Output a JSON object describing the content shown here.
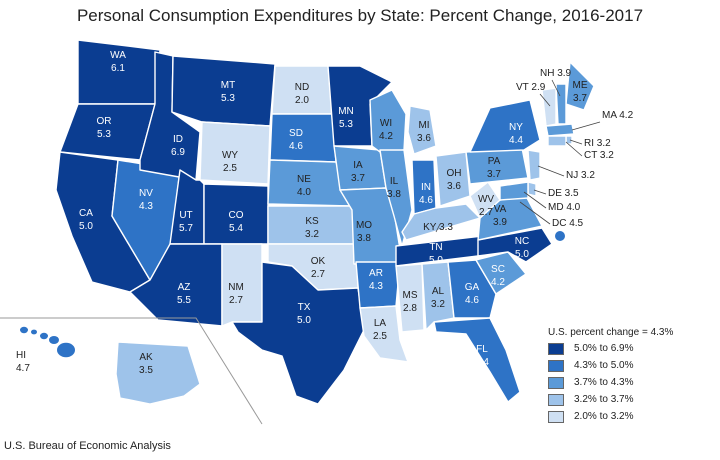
{
  "title": "Personal Consumption Expenditures by State: Percent Change, 2016-2017",
  "source": "U.S. Bureau of Economic Analysis",
  "legend": {
    "title": "U.S. percent change = 4.3%",
    "items": [
      {
        "label": "5.0% to 6.9%",
        "color": "#0b3d91"
      },
      {
        "label": "4.3% to 5.0%",
        "color": "#2e73c6"
      },
      {
        "label": "3.7% to 4.3%",
        "color": "#5b9ad8"
      },
      {
        "label": "3.2% to 3.7%",
        "color": "#9ec3ea"
      },
      {
        "label": "2.0% to 3.2%",
        "color": "#cfe0f3"
      }
    ]
  },
  "states": {
    "WA": "6.1",
    "OR": "5.3",
    "CA": "5.0",
    "NV": "4.3",
    "ID": "6.9",
    "MT": "5.3",
    "WY": "2.5",
    "UT": "5.7",
    "CO": "5.4",
    "AZ": "5.5",
    "NM": "2.7",
    "ND": "2.0",
    "SD": "4.6",
    "NE": "4.0",
    "KS": "3.2",
    "OK": "2.7",
    "TX": "5.0",
    "MN": "5.3",
    "IA": "3.7",
    "MO": "3.8",
    "AR": "4.3",
    "LA": "2.5",
    "WI": "4.2",
    "IL": "3.8",
    "MI": "3.6",
    "IN": "4.6",
    "OH": "3.6",
    "KY": "3.3",
    "TN": "5.0",
    "MS": "2.8",
    "AL": "3.2",
    "GA": "4.6",
    "FL": "4.4",
    "SC": "4.2",
    "NC": "5.0",
    "VA": "3.9",
    "WV": "2.7",
    "PA": "3.7",
    "NY": "4.4",
    "ME": "3.7",
    "NH": "3.9",
    "VT": "2.9",
    "MA": "4.2",
    "RI": "3.2",
    "CT": "3.2",
    "NJ": "3.2",
    "DE": "3.5",
    "MD": "4.0",
    "DC": "4.5",
    "AK": "3.5",
    "HI": "4.7"
  },
  "palette": {
    "stroke": "#ffffff",
    "dark_text": "#222222",
    "light_text": "#ffffff"
  }
}
